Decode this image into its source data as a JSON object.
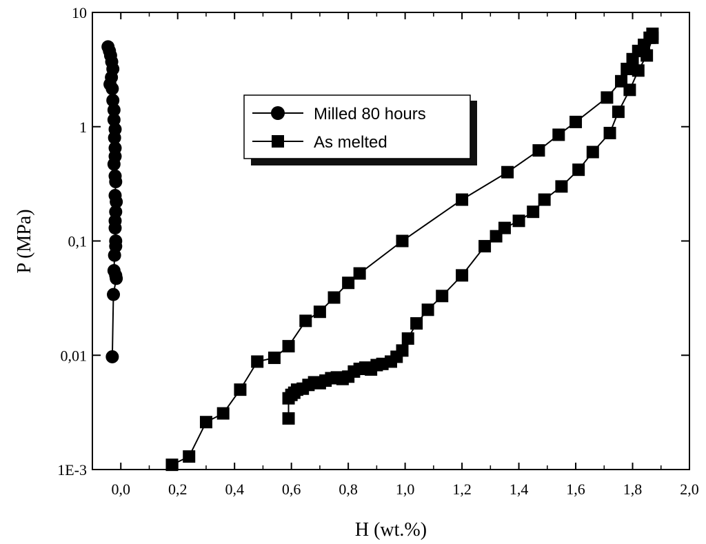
{
  "chart_data": {
    "type": "scatter",
    "xlabel": "H (wt.%)",
    "ylabel": "P (MPa)",
    "xlim": [
      -0.1,
      2.0
    ],
    "ylim": [
      0.001,
      10
    ],
    "yscale": "log",
    "grid": false,
    "legend_position": "top-center",
    "x_ticks": [
      {
        "value": 0.0,
        "label": "0,0"
      },
      {
        "value": 0.2,
        "label": "0,2"
      },
      {
        "value": 0.4,
        "label": "0,4"
      },
      {
        "value": 0.6,
        "label": "0,6"
      },
      {
        "value": 0.8,
        "label": "0,8"
      },
      {
        "value": 1.0,
        "label": "1,0"
      },
      {
        "value": 1.2,
        "label": "1,2"
      },
      {
        "value": 1.4,
        "label": "1,4"
      },
      {
        "value": 1.6,
        "label": "1,6"
      },
      {
        "value": 1.8,
        "label": "1,8"
      },
      {
        "value": 2.0,
        "label": "2,0"
      }
    ],
    "y_ticks": [
      {
        "value": 0.001,
        "label": "1E-3"
      },
      {
        "value": 0.01,
        "label": "0,01"
      },
      {
        "value": 0.1,
        "label": "0,1"
      },
      {
        "value": 1,
        "label": "1"
      },
      {
        "value": 10,
        "label": "10"
      }
    ],
    "series": [
      {
        "name": "Milled 80 hours",
        "marker": "circle",
        "color": "#000000",
        "points": [
          [
            -0.045,
            5.0
          ],
          [
            -0.04,
            4.6
          ],
          [
            -0.036,
            4.2
          ],
          [
            -0.032,
            3.7
          ],
          [
            -0.028,
            3.2
          ],
          [
            -0.033,
            2.7
          ],
          [
            -0.038,
            2.35
          ],
          [
            -0.03,
            2.15
          ],
          [
            -0.028,
            1.7
          ],
          [
            -0.024,
            1.4
          ],
          [
            -0.024,
            1.15
          ],
          [
            -0.02,
            0.95
          ],
          [
            -0.022,
            0.8
          ],
          [
            -0.02,
            0.65
          ],
          [
            -0.02,
            0.55
          ],
          [
            -0.024,
            0.47
          ],
          [
            -0.02,
            0.37
          ],
          [
            -0.018,
            0.33
          ],
          [
            -0.02,
            0.25
          ],
          [
            -0.016,
            0.22
          ],
          [
            -0.018,
            0.18
          ],
          [
            -0.02,
            0.15
          ],
          [
            -0.02,
            0.13
          ],
          [
            -0.018,
            0.1
          ],
          [
            -0.018,
            0.09
          ],
          [
            -0.022,
            0.075
          ],
          [
            -0.024,
            0.055
          ],
          [
            -0.018,
            0.05
          ],
          [
            -0.016,
            0.047
          ],
          [
            -0.026,
            0.034
          ],
          [
            -0.03,
            0.0097
          ]
        ]
      },
      {
        "name": "As melted",
        "marker": "square",
        "color": "#000000",
        "segments": [
          [
            [
              0.18,
              0.0011
            ],
            [
              0.24,
              0.0013
            ],
            [
              0.3,
              0.0026
            ],
            [
              0.36,
              0.0031
            ],
            [
              0.42,
              0.005
            ],
            [
              0.48,
              0.0088
            ],
            [
              0.54,
              0.0095
            ],
            [
              0.59,
              0.012
            ],
            [
              0.65,
              0.02
            ],
            [
              0.7,
              0.024
            ],
            [
              0.75,
              0.032
            ],
            [
              0.8,
              0.043
            ],
            [
              0.84,
              0.052
            ],
            [
              0.99,
              0.1
            ],
            [
              1.2,
              0.23
            ],
            [
              1.36,
              0.4
            ],
            [
              1.47,
              0.62
            ],
            [
              1.54,
              0.85
            ],
            [
              1.6,
              1.1
            ],
            [
              1.71,
              1.8
            ],
            [
              1.76,
              2.5
            ],
            [
              1.78,
              3.2
            ],
            [
              1.8,
              3.9
            ],
            [
              1.82,
              4.6
            ],
            [
              1.84,
              5.2
            ],
            [
              1.86,
              6.0
            ],
            [
              1.87,
              6.5
            ]
          ],
          [
            [
              0.59,
              0.0028
            ],
            [
              0.59,
              0.0042
            ],
            [
              0.6,
              0.0045
            ],
            [
              0.61,
              0.0047
            ],
            [
              0.62,
              0.005
            ],
            [
              0.64,
              0.0051
            ],
            [
              0.66,
              0.0055
            ],
            [
              0.68,
              0.0058
            ],
            [
              0.7,
              0.0057
            ],
            [
              0.72,
              0.006
            ],
            [
              0.74,
              0.0063
            ],
            [
              0.76,
              0.0064
            ],
            [
              0.78,
              0.0062
            ],
            [
              0.8,
              0.0065
            ],
            [
              0.82,
              0.0072
            ],
            [
              0.84,
              0.0076
            ],
            [
              0.86,
              0.0078
            ],
            [
              0.88,
              0.0075
            ],
            [
              0.9,
              0.0082
            ],
            [
              0.92,
              0.0084
            ],
            [
              0.95,
              0.0088
            ],
            [
              0.97,
              0.0097
            ],
            [
              0.99,
              0.011
            ],
            [
              1.01,
              0.014
            ],
            [
              1.04,
              0.019
            ],
            [
              1.08,
              0.025
            ],
            [
              1.13,
              0.033
            ],
            [
              1.2,
              0.05
            ],
            [
              1.28,
              0.09
            ],
            [
              1.32,
              0.11
            ],
            [
              1.35,
              0.13
            ],
            [
              1.4,
              0.15
            ],
            [
              1.45,
              0.18
            ],
            [
              1.49,
              0.23
            ],
            [
              1.55,
              0.3
            ],
            [
              1.61,
              0.42
            ],
            [
              1.66,
              0.6
            ],
            [
              1.72,
              0.88
            ],
            [
              1.75,
              1.35
            ],
            [
              1.79,
              2.1
            ],
            [
              1.82,
              3.1
            ],
            [
              1.85,
              4.2
            ],
            [
              1.87,
              6.0
            ]
          ]
        ]
      }
    ]
  }
}
